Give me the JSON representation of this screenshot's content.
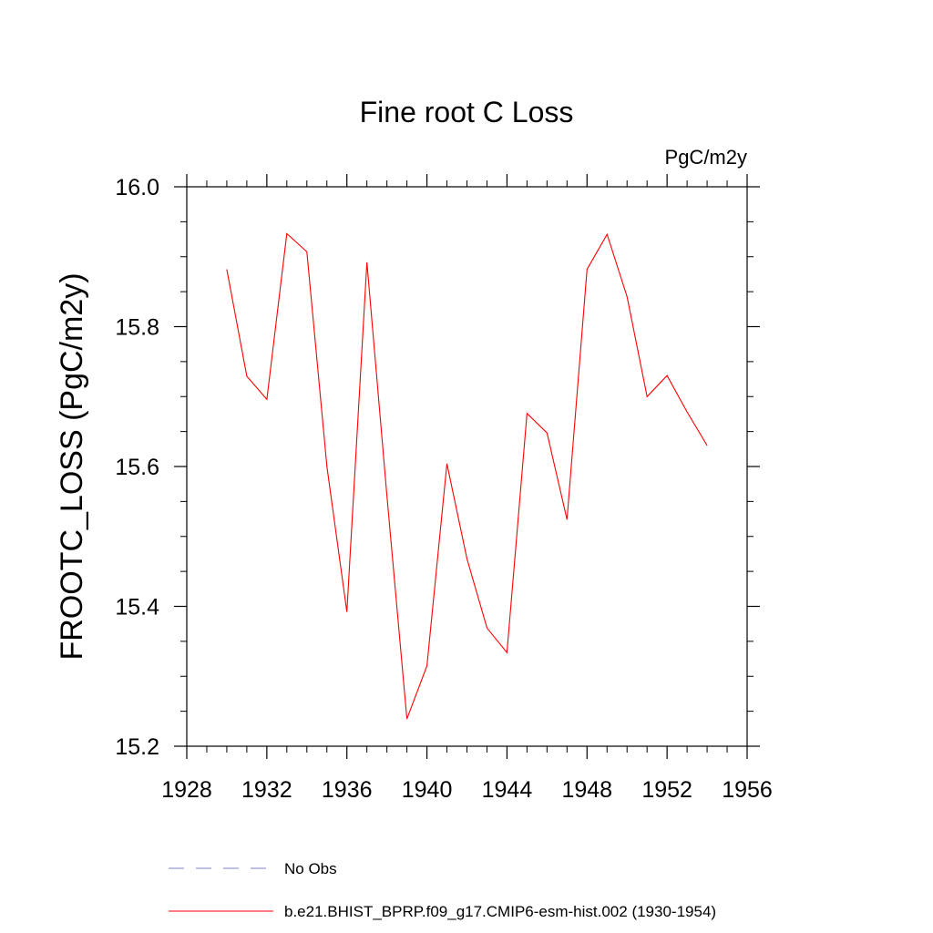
{
  "chart_data": {
    "type": "line",
    "title": "Fine root C Loss",
    "units": "PgC/m2y",
    "ylabel": "FROOTC_LOSS  (PgC/m2y)",
    "xlabel": "",
    "xlim": [
      1928,
      1956
    ],
    "ylim": [
      15.2,
      16.0
    ],
    "x_ticks": [
      "1928",
      "1932",
      "1936",
      "1940",
      "1944",
      "1948",
      "1952",
      "1956"
    ],
    "y_ticks": [
      "15.2",
      "15.4",
      "15.6",
      "15.8",
      "16.0"
    ],
    "grid": false,
    "legend_position": "bottom",
    "series": [
      {
        "name": "b.e21.BHIST_BPRP.f09_g17.CMIP6-esm-hist.002 (1930-1954)",
        "color": "#ff0000",
        "style": "solid",
        "x": [
          1930,
          1931,
          1932,
          1933,
          1934,
          1935,
          1936,
          1937,
          1938,
          1939,
          1940,
          1941,
          1942,
          1943,
          1944,
          1945,
          1946,
          1947,
          1948,
          1949,
          1950,
          1951,
          1952,
          1953,
          1954
        ],
        "values": [
          15.882,
          15.729,
          15.696,
          15.933,
          15.907,
          15.6,
          15.392,
          15.892,
          15.559,
          15.239,
          15.315,
          15.604,
          15.468,
          15.369,
          15.334,
          15.676,
          15.648,
          15.524,
          15.882,
          15.932,
          15.843,
          15.7,
          15.73,
          15.678,
          15.63
        ]
      }
    ]
  },
  "legend": {
    "items": [
      {
        "label": "No Obs",
        "color": "#8080c0",
        "style": "dashed"
      },
      {
        "label": "b.e21.BHIST_BPRP.f09_g17.CMIP6-esm-hist.002 (1930-1954)",
        "color": "#ff0000",
        "style": "solid"
      }
    ]
  }
}
